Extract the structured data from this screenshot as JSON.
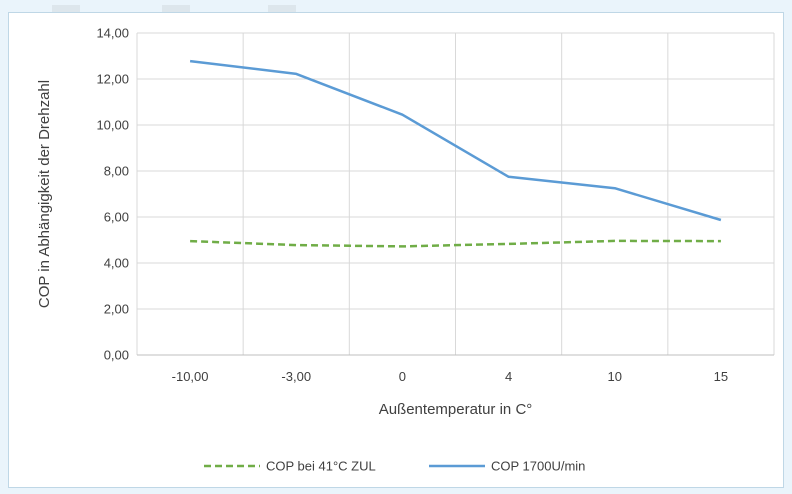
{
  "chart_data": {
    "type": "line",
    "title": "",
    "xlabel": "Außentemperatur in C°",
    "ylabel": "COP in Abhängigkeit der Drehzahl",
    "categories": [
      "-10,00",
      "-3,00",
      "0",
      "4",
      "10",
      "15"
    ],
    "ylim": [
      0,
      14
    ],
    "yticks": [
      "0,00",
      "2,00",
      "4,00",
      "6,00",
      "8,00",
      "10,00",
      "12,00",
      "14,00"
    ],
    "grid": true,
    "legend_position": "bottom",
    "series": [
      {
        "name": "COP bei 41°C ZUL",
        "values": [
          4.95,
          4.78,
          4.72,
          4.83,
          4.96,
          4.95
        ],
        "color": "#70ad47",
        "dash": true
      },
      {
        "name": "COP 1700U/min",
        "values": [
          12.78,
          12.22,
          10.45,
          7.75,
          7.25,
          5.87
        ],
        "color": "#5b9bd5",
        "dash": false
      }
    ]
  }
}
